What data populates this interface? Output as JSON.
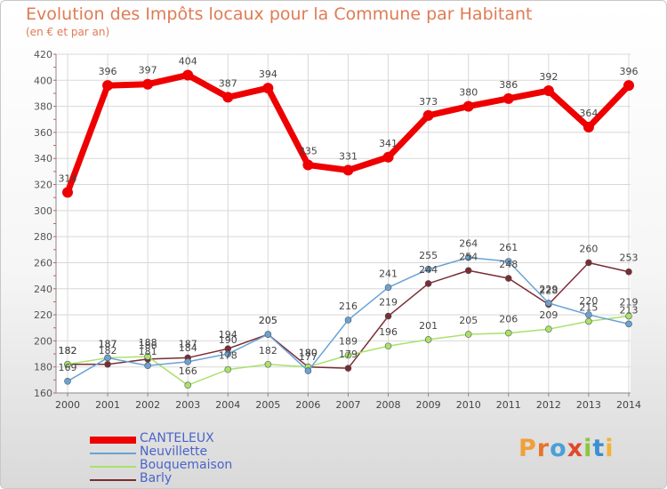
{
  "header": {
    "title": "Evolution des Impôts locaux pour la Commune par Habitant",
    "subtitle": "(en € et par an)"
  },
  "chart_data": {
    "type": "line",
    "title": "Evolution des Impôts locaux pour la Commune par Habitant",
    "subtitle": "(en € et par an)",
    "xlabel": "",
    "ylabel": "",
    "x": [
      2000,
      2001,
      2002,
      2003,
      2004,
      2005,
      2006,
      2007,
      2008,
      2009,
      2010,
      2011,
      2012,
      2013,
      2014
    ],
    "ylim": [
      160,
      420
    ],
    "yticks": [
      160,
      180,
      200,
      220,
      240,
      260,
      280,
      300,
      320,
      340,
      360,
      380,
      400,
      420
    ],
    "grid": true,
    "legend_position": "bottom-left",
    "series": [
      {
        "name": "CANTELEUX",
        "color": "#ee0000",
        "values": [
          314,
          396,
          397,
          404,
          387,
          394,
          335,
          331,
          341,
          373,
          380,
          386,
          392,
          364,
          396
        ]
      },
      {
        "name": "Neuvillette",
        "color": "#6aa2d4",
        "values": [
          169,
          187,
          181,
          184,
          190,
          205,
          177,
          216,
          241,
          255,
          264,
          261,
          229,
          220,
          213
        ]
      },
      {
        "name": "Bouquemaison",
        "color": "#a8e26a",
        "values": [
          182,
          187,
          188,
          166,
          178,
          182,
          180,
          189,
          196,
          201,
          205,
          206,
          209,
          215,
          219
        ]
      },
      {
        "name": "Barly",
        "color": "#7a2c34",
        "values": [
          182,
          182,
          186,
          187,
          194,
          205,
          180,
          179,
          219,
          244,
          254,
          248,
          228,
          260,
          253
        ]
      }
    ]
  },
  "logo": {
    "letters": [
      "P",
      "r",
      "o",
      "x",
      "i",
      "t",
      "i"
    ],
    "colors": [
      "#f0a03a",
      "#e8742c",
      "#4aa0d8",
      "#e0482c",
      "#8cc63e",
      "#3c8fd0",
      "#f0b43a"
    ]
  }
}
